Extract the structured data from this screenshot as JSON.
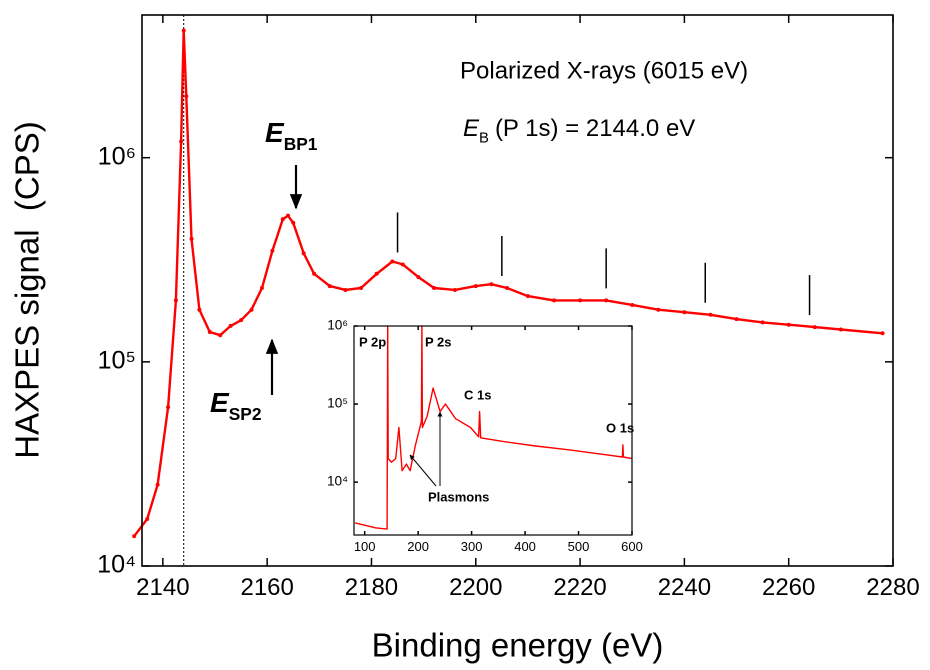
{
  "chart_data": [
    {
      "type": "line",
      "x_label": "Binding energy (eV)",
      "y_label": "HAXPES signal  (CPS)",
      "log_y": true,
      "xlim": [
        2136,
        2280
      ],
      "ylim": [
        10000,
        5000000
      ],
      "xticks": [
        2140,
        2160,
        2180,
        2200,
        2220,
        2240,
        2260,
        2280
      ],
      "yticks": [
        {
          "value": 10000,
          "label": "10⁴"
        },
        {
          "value": 100000,
          "label": "10⁵"
        },
        {
          "value": 1000000,
          "label": "10⁶"
        }
      ],
      "x": [
        2134.5,
        2137,
        2139,
        2141,
        2142.5,
        2143.5,
        2144,
        2144.5,
        2145.5,
        2147,
        2149,
        2151,
        2153,
        2155,
        2157,
        2159,
        2161,
        2163,
        2164,
        2165,
        2167,
        2169,
        2172,
        2175,
        2178,
        2181,
        2184,
        2186,
        2189,
        2192,
        2196,
        2200,
        2203,
        2206,
        2210,
        2215,
        2220,
        2225,
        2230,
        2235,
        2240,
        2245,
        2250,
        2255,
        2260,
        2265,
        2270,
        2278
      ],
      "series": [
        {
          "color": "#ff0000",
          "values": [
            14000,
            17000,
            25000,
            60000,
            200000,
            1200000,
            4200000,
            2000000,
            400000,
            180000,
            140000,
            135000,
            150000,
            160000,
            180000,
            230000,
            350000,
            500000,
            520000,
            480000,
            340000,
            270000,
            235000,
            225000,
            230000,
            270000,
            310000,
            300000,
            260000,
            230000,
            225000,
            235000,
            240000,
            230000,
            210000,
            200000,
            200000,
            200000,
            190000,
            180000,
            175000,
            170000,
            162000,
            156000,
            152000,
            148000,
            144000,
            138000
          ]
        }
      ],
      "reference_line": 2144,
      "plasmon_markers": [
        2185,
        2205,
        2225,
        2244,
        2264
      ],
      "annotations": {
        "source": "Polarized X-rays (6015 eV)",
        "binding": {
          "symbol": "E",
          "subscript": "B",
          "text": "(P 1s) = 2144.0 eV"
        },
        "bulk_plasmon": {
          "symbol": "E",
          "subscript": "BP1"
        },
        "surface_plasmon": {
          "symbol": "E",
          "subscript": "SP2"
        }
      }
    },
    {
      "type": "line",
      "log_y": true,
      "xlim": [
        80,
        600
      ],
      "ylim": [
        2100,
        1000000
      ],
      "xticks": [
        100,
        200,
        300,
        400,
        500,
        600
      ],
      "yticks": [
        {
          "value": 10000,
          "label": "10⁴"
        },
        {
          "value": 100000,
          "label": "10⁵"
        },
        {
          "value": 1000000,
          "label": "10⁶"
        }
      ],
      "x": [
        82,
        100,
        120,
        142,
        143,
        144,
        150,
        158,
        164,
        170,
        178,
        185,
        195,
        206,
        207,
        208,
        217,
        228,
        241,
        251,
        270,
        298,
        313,
        315,
        317,
        360,
        420,
        480,
        540,
        582,
        583,
        584,
        600
      ],
      "series": [
        {
          "color": "#ff0000",
          "values": [
            3000,
            2800,
            2600,
            2500,
            1000000,
            20000,
            18000,
            20000,
            50000,
            14000,
            17000,
            14000,
            30000,
            60000,
            1000000,
            50000,
            70000,
            160000,
            80000,
            100000,
            65000,
            50000,
            38000,
            80000,
            37000,
            33000,
            29000,
            26000,
            23000,
            21000,
            30000,
            21000,
            20000
          ]
        }
      ],
      "annotations": {
        "p2p": "P 2p",
        "p2s": "P 2s",
        "c1s": "C 1s",
        "o1s": "O 1s",
        "plasmons": "Plasmons"
      }
    }
  ]
}
